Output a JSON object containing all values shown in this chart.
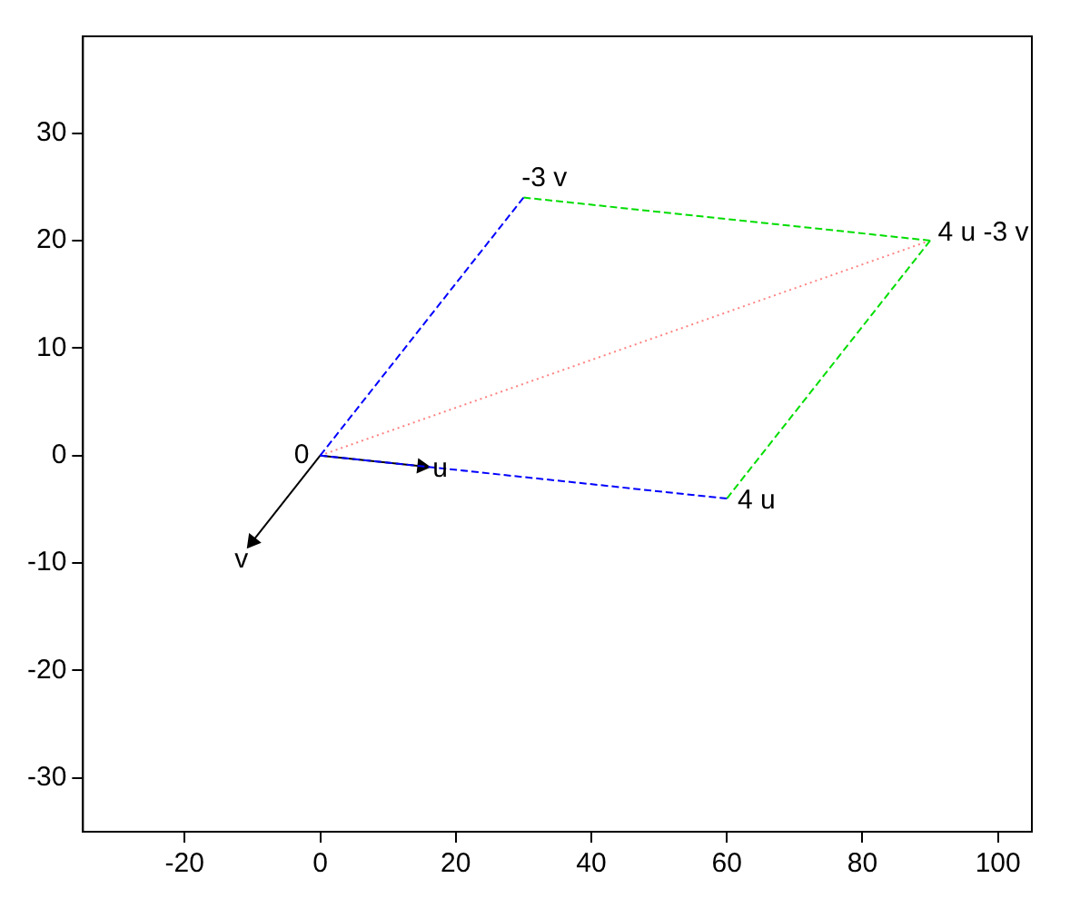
{
  "chart_data": {
    "type": "line",
    "xlim": [
      -35,
      105
    ],
    "ylim": [
      -35,
      39
    ],
    "xticks": [
      -20,
      0,
      20,
      40,
      60,
      80,
      100
    ],
    "yticks": [
      -30,
      -20,
      -10,
      0,
      10,
      20,
      30
    ],
    "grid": false,
    "legend": false,
    "series": [
      {
        "color": "#0000ff",
        "line_style": "dashed",
        "marker": "none",
        "x": [
          0,
          30
        ],
        "values": [
          0,
          24
        ]
      },
      {
        "color": "#0000ff",
        "line_style": "dashed",
        "marker": "none",
        "x": [
          0,
          60
        ],
        "values": [
          0,
          -4
        ]
      },
      {
        "color": "#00dd00",
        "line_style": "dashed",
        "marker": "none",
        "x": [
          30,
          90
        ],
        "values": [
          24,
          20
        ]
      },
      {
        "color": "#00dd00",
        "line_style": "dashed",
        "marker": "none",
        "x": [
          60,
          90
        ],
        "values": [
          -4,
          20
        ]
      },
      {
        "color": "#ff8080",
        "line_style": "dotted",
        "marker": "none",
        "x": [
          0,
          90
        ],
        "values": [
          0,
          20
        ]
      },
      {
        "color": "#000000",
        "line_style": "solid",
        "marker": "triangle",
        "x": [
          0,
          15
        ],
        "values": [
          0,
          -1
        ]
      },
      {
        "color": "#000000",
        "line_style": "solid",
        "marker": "triangle",
        "x": [
          0,
          -10
        ],
        "values": [
          0,
          -8
        ]
      }
    ],
    "annotations": [
      {
        "text": "0",
        "x": 0,
        "y": 0
      },
      {
        "text": "u",
        "x": 15,
        "y": -1
      },
      {
        "text": "v",
        "x": -10,
        "y": -8
      },
      {
        "text": "-3 v",
        "x": 30,
        "y": 24
      },
      {
        "text": "4 u",
        "x": 60,
        "y": -4
      },
      {
        "text": "4 u -3 v",
        "x": 90,
        "y": 20
      }
    ]
  }
}
